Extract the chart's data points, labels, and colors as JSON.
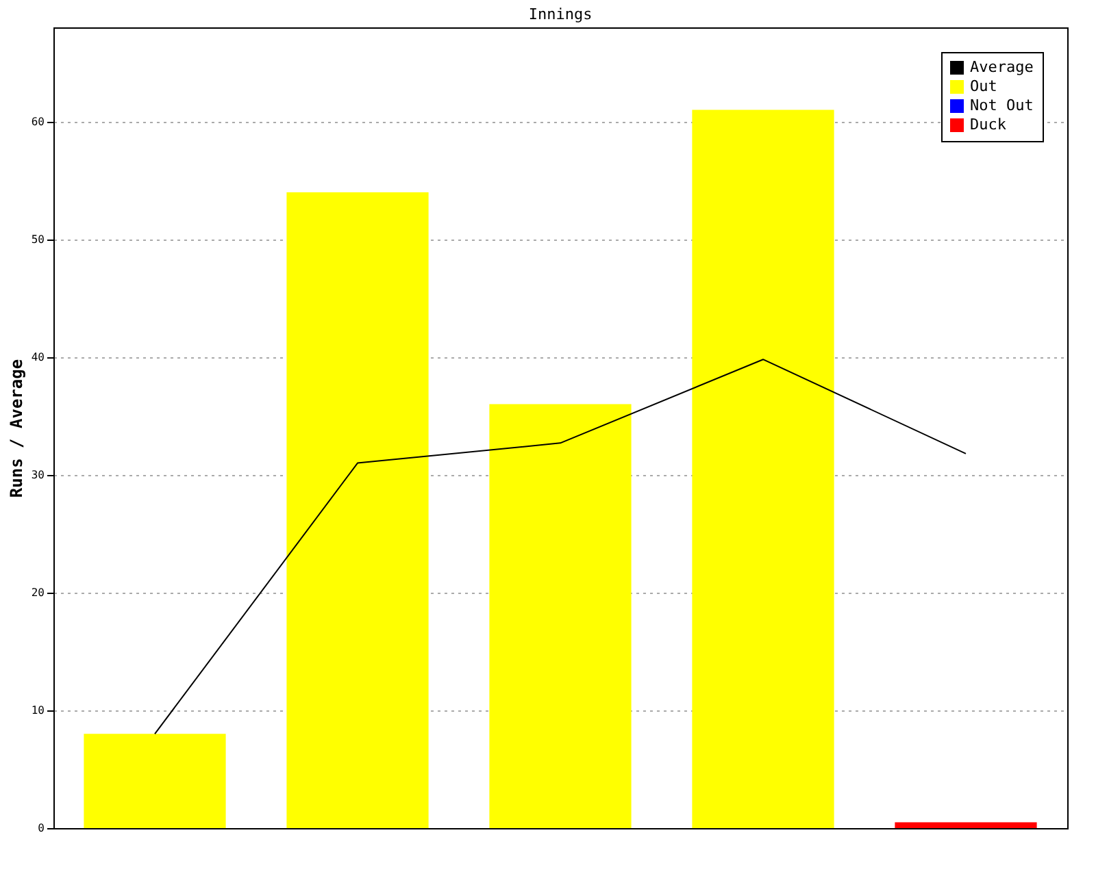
{
  "chart_data": {
    "type": "bar",
    "title": "Innings",
    "ylabel": "Runs / Average",
    "categories": [
      null,
      null,
      null,
      null,
      null
    ],
    "series": [
      {
        "name": "Average",
        "type": "line",
        "color": "#000000",
        "values": [
          8,
          31,
          32.7,
          39.8,
          31.8
        ]
      },
      {
        "name": "Out",
        "color": "#ffff00",
        "values": [
          8,
          54,
          36,
          61,
          null
        ]
      },
      {
        "name": "Not Out",
        "color": "#0000ff",
        "values": [
          null,
          null,
          null,
          null,
          null
        ]
      },
      {
        "name": "Duck",
        "color": "#ff0000",
        "values": [
          null,
          null,
          null,
          null,
          0.5
        ]
      }
    ],
    "ylim": [
      0,
      68
    ],
    "yticks": [
      0,
      10,
      20,
      30,
      40,
      50,
      60
    ],
    "grid": "y",
    "legend": "top right",
    "tick_labels": "y"
  }
}
